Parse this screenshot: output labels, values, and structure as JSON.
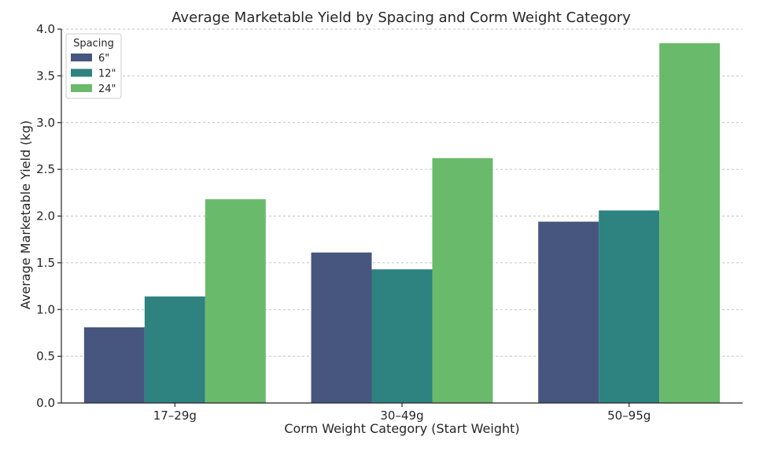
{
  "chart_data": {
    "type": "bar",
    "title": "Average Marketable Yield by Spacing and Corm Weight Category",
    "xlabel": "Corm Weight Category (Start Weight)",
    "ylabel": "Average Marketable Yield (kg)",
    "categories": [
      "17–29g",
      "30–49g",
      "50–95g"
    ],
    "series": [
      {
        "name": "6\"",
        "color": "#46567f",
        "values": [
          0.81,
          1.61,
          1.94
        ]
      },
      {
        "name": "12\"",
        "color": "#2e8280",
        "values": [
          1.14,
          1.43,
          2.06
        ]
      },
      {
        "name": "24\"",
        "color": "#6aba6c",
        "values": [
          2.18,
          2.62,
          3.85
        ]
      }
    ],
    "ylim": [
      0,
      4.0
    ],
    "yticks": [
      "0.0",
      "0.5",
      "1.0",
      "1.5",
      "2.0",
      "2.5",
      "3.0",
      "3.5",
      "4.0"
    ],
    "grid": "y-dashed",
    "legend": {
      "title": "Spacing",
      "placement": "top-left"
    }
  }
}
